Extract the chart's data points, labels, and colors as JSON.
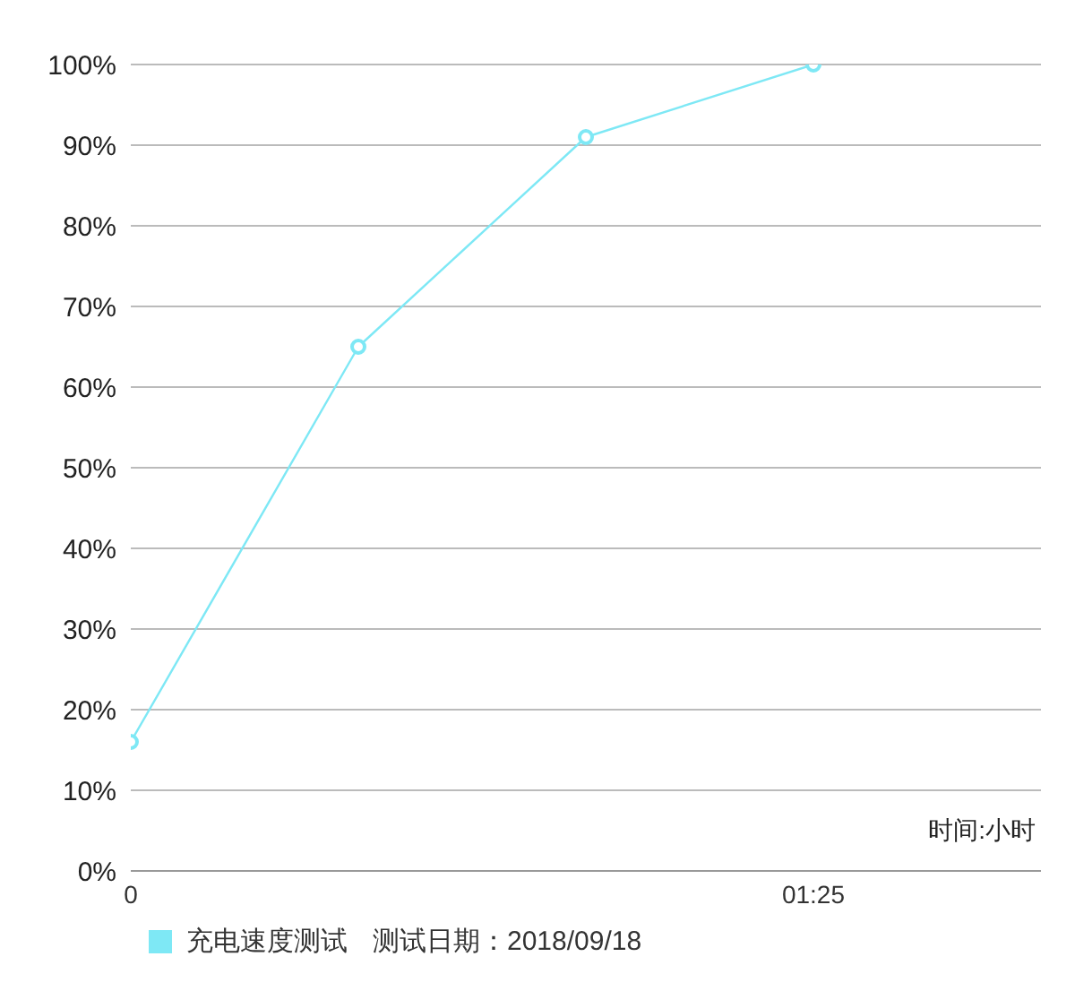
{
  "chart_data": {
    "type": "line",
    "xlabel": "时间:小时",
    "categories": [
      "0",
      null,
      null,
      "01:25",
      null
    ],
    "series": [
      {
        "name": "充电速度测试",
        "color": "#7ee8f5",
        "values": [
          16,
          65,
          91,
          100,
          null
        ]
      }
    ],
    "ylim": [
      0,
      100
    ],
    "yticks": [
      {
        "value": 0,
        "label": "0%"
      },
      {
        "value": 10,
        "label": "10%"
      },
      {
        "value": 20,
        "label": "20%"
      },
      {
        "value": 30,
        "label": "30%"
      },
      {
        "value": 40,
        "label": "40%"
      },
      {
        "value": 50,
        "label": "50%"
      },
      {
        "value": 60,
        "label": "60%"
      },
      {
        "value": 70,
        "label": "70%"
      },
      {
        "value": 80,
        "label": "80%"
      },
      {
        "value": 90,
        "label": "90%"
      },
      {
        "value": 100,
        "label": "100%"
      }
    ],
    "grid": "y",
    "legend": "bottom",
    "marker": "circle",
    "line_style": "solid",
    "annotations": [
      "测试日期：2018/09/18"
    ]
  }
}
